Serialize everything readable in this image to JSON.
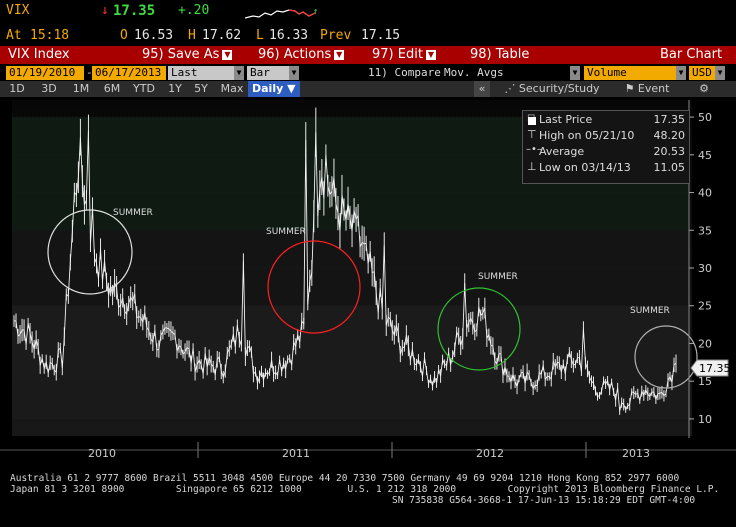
{
  "header": {
    "ticker": "VIX",
    "last_arrow": "↓",
    "last": "17.35",
    "change": "+.20",
    "change_arrow": "↑",
    "time_label": "At",
    "time": "15:18",
    "open_label": "O",
    "open": "16.53",
    "high_label": "H",
    "high": "17.62",
    "low_label": "L",
    "low": "16.33",
    "prev_label": "Prev",
    "prev": "17.15"
  },
  "toolbar": {
    "security": "VIX Index",
    "save_as": "95) Save As",
    "actions": "96) Actions",
    "edit": "97) Edit",
    "table": "98) Table",
    "view": "Bar Chart"
  },
  "params": {
    "start_date": "01/19/2010",
    "separator": "-",
    "end_date": "06/17/2013",
    "field": "Last Price",
    "style": "Bar",
    "compare": "11) Compare",
    "mov_avgs": "Mov. Avgs",
    "volume": "Volume",
    "currency": "USD"
  },
  "periods": {
    "items": [
      "1D",
      "3D",
      "1M",
      "6M",
      "YTD",
      "1Y",
      "5Y",
      "Max"
    ],
    "selected": "Daily",
    "selected_arrow": "▼",
    "collapse": "«",
    "security_study": "Security/Study",
    "event": "Event",
    "settings_icon": "gear-icon"
  },
  "legend": {
    "rows": [
      {
        "label": "Last Price",
        "value": "17.35"
      },
      {
        "label": "High on 05/21/10",
        "value": "48.20"
      },
      {
        "label": "Average",
        "value": "20.53"
      },
      {
        "label": "Low on 03/14/13",
        "value": "11.05"
      }
    ]
  },
  "annotations": {
    "summer_label": "SUMMER"
  },
  "colors": {
    "amber": "#f2a900",
    "toolbar_red": "#a80000",
    "period_blue": "#2c5dbf",
    "circle_2010": "#e0e0e0",
    "circle_2011": "#ff2020",
    "circle_2012": "#30c030",
    "circle_2013": "#b0b0b0"
  },
  "chart_data": {
    "type": "line",
    "series_style": "bar",
    "title": "",
    "ylim": [
      8,
      52
    ],
    "y_ticks": [
      10,
      15,
      20,
      25,
      30,
      35,
      40,
      45,
      50
    ],
    "x_labels": [
      "2010",
      "2011",
      "2012",
      "2013"
    ],
    "last_value_label": "17.35",
    "series": [
      {
        "x": [
          "2010-01",
          "2010-02",
          "2010-03",
          "2010-04",
          "2010-05",
          "2010-06",
          "2010-07",
          "2010-08",
          "2010-09",
          "2010-10",
          "2010-11",
          "2010-12",
          "2011-01",
          "2011-02",
          "2011-03",
          "2011-04",
          "2011-05",
          "2011-06",
          "2011-07",
          "2011-08",
          "2011-09",
          "2011-10",
          "2011-11",
          "2011-12",
          "2012-01",
          "2012-02",
          "2012-03",
          "2012-04",
          "2012-05",
          "2012-06",
          "2012-07",
          "2012-08",
          "2012-09",
          "2012-10",
          "2012-11",
          "2012-12",
          "2013-01",
          "2013-02",
          "2013-03",
          "2013-04",
          "2013-05",
          "2013-06"
        ],
        "values": [
          23,
          21,
          17,
          18,
          45,
          32,
          27,
          26,
          23,
          20,
          21,
          18,
          17,
          17,
          22,
          16,
          17,
          18,
          22,
          44,
          38,
          35,
          30,
          23,
          20,
          18,
          15,
          18,
          23,
          24,
          18,
          15,
          15,
          16,
          17,
          18,
          14,
          14,
          12,
          14,
          13,
          17.35
        ]
      }
    ],
    "markers": [
      {
        "label": "High on 05/21/10",
        "value": 48.2
      },
      {
        "label": "Low on 03/14/13",
        "value": 11.05
      },
      {
        "label": "Average",
        "value": 20.53
      }
    ]
  },
  "footer": {
    "line1": "Australia 61 2 9777 8600 Brazil 5511 3048 4500 Europe 44 20 7330 7500 Germany 49 69 9204 1210 Hong Kong 852 2977 6000",
    "line2": "Japan 81 3 3201 8900         Singapore 65 6212 1000        U.S. 1 212 318 2000         Copyright 2013 Bloomberg Finance L.P.",
    "line3": "SN 735838 G564-3668-1 17-Jun-13 15:18:29 EDT  GMT-4:00"
  }
}
